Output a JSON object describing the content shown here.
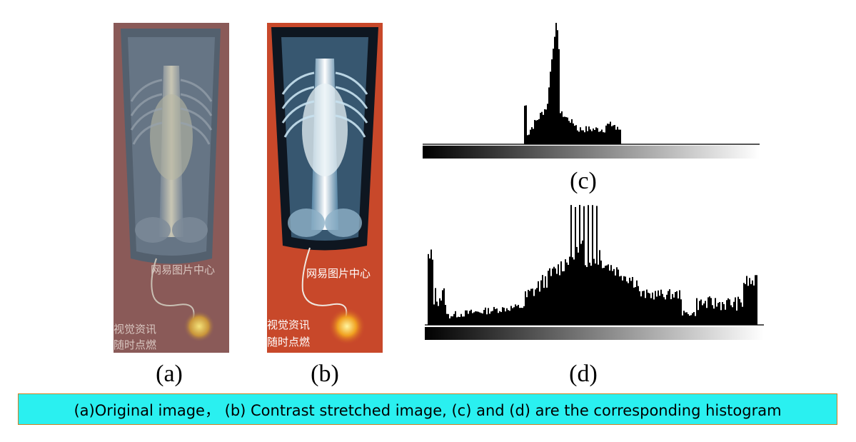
{
  "panels": {
    "a": {
      "label": "(a)",
      "watermark_line1": "网易图片中心",
      "watermark_line2": "视觉资讯",
      "watermark_line3": "随时点燃"
    },
    "b": {
      "label": "(b)",
      "watermark_line1": "网易图片中心",
      "watermark_line2": "视觉资讯",
      "watermark_line3": "随时点燃"
    },
    "c": {
      "label": "(c)"
    },
    "d": {
      "label": "(d)"
    }
  },
  "caption": "(a)Original image， (b) Contrast stretched image, (c) and (d) are the corresponding histogram",
  "colors": {
    "caption_bg": "#2af0f0",
    "caption_border": "#d08020",
    "original_bg": "#8a5a58",
    "stretched_bg": "#c8482a"
  }
}
